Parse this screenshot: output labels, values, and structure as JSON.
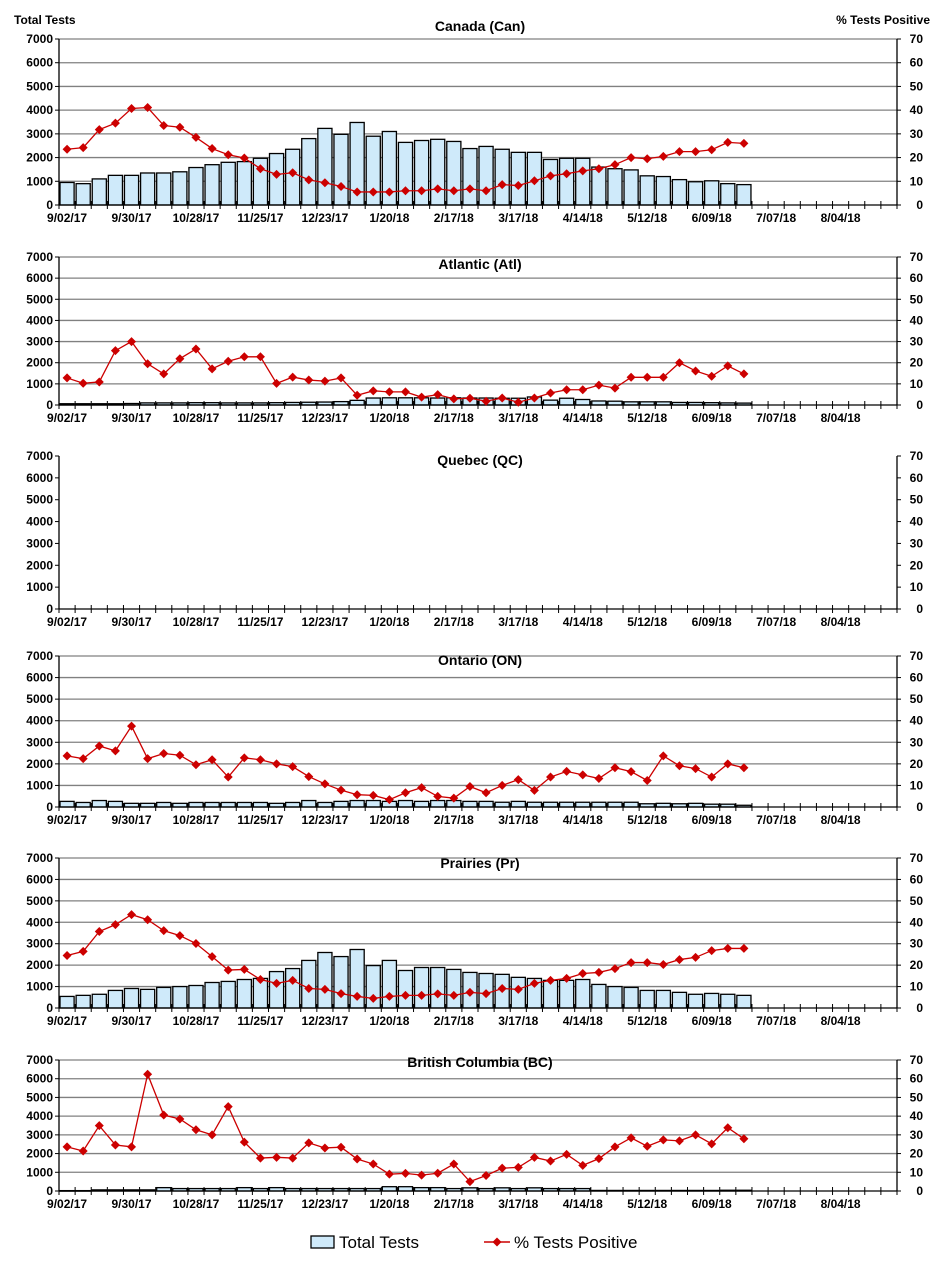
{
  "colors": {
    "bar_fill": "#cfeafa",
    "bar_stroke": "#000000",
    "line": "#cc0000",
    "grid": "#808080"
  },
  "legend": {
    "bars_label": "Total Tests",
    "line_label": "% Tests Positive",
    "placement": "bottom-center"
  },
  "chart_data": [
    {
      "type": "bar+line",
      "title": "Canada (Can)",
      "ylabel": "Total Tests",
      "y2label": "% Tests Positive",
      "ylim": [
        0,
        7000
      ],
      "y2lim": [
        0,
        70
      ],
      "y_ticks": [
        "0",
        "1000",
        "2000",
        "3000",
        "4000",
        "5000",
        "6000",
        "7000"
      ],
      "y2_ticks": [
        "0",
        "10",
        "20",
        "30",
        "40",
        "50",
        "60",
        "70"
      ],
      "x_tick_labels": [
        "9/02/17",
        "9/30/17",
        "10/28/17",
        "11/25/17",
        "12/23/17",
        "1/20/18",
        "2/17/18",
        "3/17/18",
        "4/14/18",
        "5/12/18",
        "6/09/18",
        "7/07/18",
        "8/04/18"
      ],
      "grid": true,
      "series": [
        {
          "name": "Total Tests",
          "axis": "left",
          "type": "bar",
          "values": [
            950,
            900,
            1100,
            1250,
            1250,
            1350,
            1350,
            1400,
            1580,
            1700,
            1800,
            1830,
            1970,
            2170,
            2350,
            2800,
            3230,
            2980,
            3480,
            2900,
            3100,
            2640,
            2720,
            2770,
            2680,
            2380,
            2470,
            2350,
            2220,
            2220,
            1920,
            1970,
            1970,
            1600,
            1530,
            1480,
            1230,
            1200,
            1070,
            980,
            1020,
            900,
            860
          ]
        },
        {
          "name": "% Tests Positive",
          "axis": "right",
          "type": "line",
          "values": [
            23.5,
            24.2,
            31.8,
            34.5,
            40.7,
            41.1,
            33.5,
            32.8,
            28.5,
            23.8,
            21.2,
            19.8,
            15.3,
            12.9,
            13.6,
            10.6,
            9.4,
            7.8,
            5.5,
            5.5,
            5.5,
            6.0,
            6.0,
            6.8,
            6.0,
            6.8,
            6.0,
            8.6,
            8.2,
            10.2,
            12.3,
            13.2,
            14.4,
            15.3,
            17.0,
            20.0,
            19.5,
            20.5,
            22.5,
            22.5,
            23.3,
            26.4,
            26.0
          ]
        }
      ]
    },
    {
      "type": "bar+line",
      "title": "Atlantic (Atl)",
      "ylim": [
        0,
        7000
      ],
      "y2lim": [
        0,
        70
      ],
      "y_ticks": [
        "0",
        "1000",
        "2000",
        "3000",
        "4000",
        "5000",
        "6000",
        "7000"
      ],
      "y2_ticks": [
        "0",
        "10",
        "20",
        "30",
        "40",
        "50",
        "60",
        "70"
      ],
      "x_tick_labels": [
        "9/02/17",
        "9/30/17",
        "10/28/17",
        "11/25/17",
        "12/23/17",
        "1/20/18",
        "2/17/18",
        "3/17/18",
        "4/14/18",
        "5/12/18",
        "6/09/18",
        "7/07/18",
        "8/04/18"
      ],
      "grid": true,
      "series": [
        {
          "name": "Total Tests",
          "axis": "left",
          "type": "bar",
          "values": [
            60,
            60,
            60,
            60,
            70,
            100,
            100,
            100,
            110,
            110,
            100,
            100,
            100,
            110,
            120,
            130,
            140,
            160,
            220,
            330,
            340,
            340,
            340,
            330,
            340,
            330,
            330,
            320,
            320,
            380,
            230,
            320,
            260,
            190,
            180,
            150,
            150,
            150,
            120,
            120,
            110,
            100,
            90
          ]
        },
        {
          "name": "% Tests Positive",
          "axis": "right",
          "type": "line",
          "values": [
            12.8,
            10.3,
            10.9,
            25.7,
            30.0,
            19.5,
            14.7,
            21.9,
            26.5,
            17.1,
            20.7,
            22.8,
            22.8,
            10.2,
            13.2,
            11.8,
            11.3,
            12.8,
            4.6,
            6.7,
            6.2,
            6.2,
            3.7,
            4.9,
            2.9,
            3.2,
            1.8,
            3.3,
            1.3,
            3.3,
            5.7,
            7.2,
            7.2,
            9.4,
            8.0,
            13.1,
            13.1,
            13.1,
            20.0,
            16.1,
            13.6,
            18.5,
            14.7
          ]
        }
      ]
    },
    {
      "type": "bar+line",
      "title": "Quebec (QC)",
      "ylim": [
        0,
        7000
      ],
      "y2lim": [
        0,
        70
      ],
      "y_ticks": [
        "0",
        "1000",
        "2000",
        "3000",
        "4000",
        "5000",
        "6000",
        "7000"
      ],
      "y2_ticks": [
        "0",
        "10",
        "20",
        "30",
        "40",
        "50",
        "60",
        "70"
      ],
      "x_tick_labels": [
        "9/02/17",
        "9/30/17",
        "10/28/17",
        "11/25/17",
        "12/23/17",
        "1/20/18",
        "2/17/18",
        "3/17/18",
        "4/14/18",
        "5/12/18",
        "6/09/18",
        "7/07/18",
        "8/04/18"
      ],
      "grid": false,
      "series": [
        {
          "name": "Total Tests",
          "axis": "left",
          "type": "bar",
          "values": []
        },
        {
          "name": "% Tests Positive",
          "axis": "right",
          "type": "line",
          "values": []
        }
      ]
    },
    {
      "type": "bar+line",
      "title": "Ontario (ON)",
      "ylim": [
        0,
        7000
      ],
      "y2lim": [
        0,
        70
      ],
      "y_ticks": [
        "0",
        "1000",
        "2000",
        "3000",
        "4000",
        "5000",
        "6000",
        "7000"
      ],
      "y2_ticks": [
        "0",
        "10",
        "20",
        "30",
        "40",
        "50",
        "60",
        "70"
      ],
      "x_tick_labels": [
        "9/02/17",
        "9/30/17",
        "10/28/17",
        "11/25/17",
        "12/23/17",
        "1/20/18",
        "2/17/18",
        "3/17/18",
        "4/14/18",
        "5/12/18",
        "6/09/18",
        "7/07/18",
        "8/04/18"
      ],
      "grid": true,
      "series": [
        {
          "name": "Total Tests",
          "axis": "left",
          "type": "bar",
          "values": [
            260,
            210,
            300,
            260,
            170,
            170,
            210,
            170,
            210,
            210,
            210,
            210,
            210,
            170,
            210,
            300,
            210,
            260,
            300,
            300,
            260,
            300,
            260,
            300,
            300,
            260,
            260,
            220,
            260,
            220,
            220,
            220,
            220,
            220,
            220,
            220,
            150,
            170,
            150,
            170,
            130,
            130,
            80
          ]
        },
        {
          "name": "% Tests Positive",
          "axis": "right",
          "type": "line",
          "values": [
            23.7,
            22.4,
            28.3,
            26.0,
            37.5,
            22.4,
            24.8,
            24.0,
            19.6,
            21.9,
            13.9,
            22.8,
            21.9,
            20.0,
            18.7,
            14.1,
            10.7,
            7.8,
            5.7,
            5.4,
            3.4,
            6.6,
            9.0,
            4.9,
            4.1,
            9.5,
            6.6,
            10.0,
            12.7,
            7.7,
            13.9,
            16.5,
            14.9,
            13.2,
            18.2,
            16.4,
            12.3,
            23.7,
            19.1,
            17.8,
            13.9,
            20.0,
            18.2
          ]
        }
      ]
    },
    {
      "type": "bar+line",
      "title": "Prairies (Pr)",
      "ylim": [
        0,
        7000
      ],
      "y2lim": [
        0,
        70
      ],
      "y_ticks": [
        "0",
        "1000",
        "2000",
        "3000",
        "4000",
        "5000",
        "6000",
        "7000"
      ],
      "y2_ticks": [
        "0",
        "10",
        "20",
        "30",
        "40",
        "50",
        "60",
        "70"
      ],
      "x_tick_labels": [
        "9/02/17",
        "9/30/17",
        "10/28/17",
        "11/25/17",
        "12/23/17",
        "1/20/18",
        "2/17/18",
        "3/17/18",
        "4/14/18",
        "5/12/18",
        "6/09/18",
        "7/07/18",
        "8/04/18"
      ],
      "grid": true,
      "series": [
        {
          "name": "Total Tests",
          "axis": "left",
          "type": "bar",
          "values": [
            540,
            590,
            640,
            820,
            910,
            870,
            960,
            1000,
            1050,
            1190,
            1240,
            1330,
            1380,
            1700,
            1840,
            2220,
            2590,
            2400,
            2730,
            1980,
            2220,
            1750,
            1890,
            1890,
            1800,
            1660,
            1610,
            1570,
            1430,
            1380,
            1290,
            1290,
            1330,
            1100,
            1000,
            960,
            820,
            820,
            730,
            640,
            680,
            640,
            590
          ]
        },
        {
          "name": "% Tests Positive",
          "axis": "right",
          "type": "line",
          "values": [
            24.5,
            26.4,
            35.7,
            38.9,
            43.6,
            41.2,
            36.1,
            33.8,
            30.1,
            24.0,
            17.7,
            18.0,
            13.3,
            11.5,
            12.9,
            9.1,
            8.7,
            6.7,
            5.4,
            4.5,
            5.4,
            5.9,
            5.9,
            6.6,
            5.9,
            7.3,
            6.7,
            9.1,
            8.7,
            11.5,
            12.9,
            13.8,
            16.1,
            16.6,
            18.4,
            21.2,
            21.2,
            20.3,
            22.6,
            23.6,
            26.8,
            27.8,
            27.8
          ]
        }
      ]
    },
    {
      "type": "bar+line",
      "title": "British Columbia (BC)",
      "ylim": [
        0,
        7000
      ],
      "y2lim": [
        0,
        70
      ],
      "y_ticks": [
        "0",
        "1000",
        "2000",
        "3000",
        "4000",
        "5000",
        "6000",
        "7000"
      ],
      "y2_ticks": [
        "0",
        "10",
        "20",
        "30",
        "40",
        "50",
        "60",
        "70"
      ],
      "x_tick_labels": [
        "9/02/17",
        "9/30/17",
        "10/28/17",
        "11/25/17",
        "12/23/17",
        "1/20/18",
        "2/17/18",
        "3/17/18",
        "4/14/18",
        "5/12/18",
        "6/09/18",
        "7/07/18",
        "8/04/18"
      ],
      "grid": true,
      "series": [
        {
          "name": "Total Tests",
          "axis": "left",
          "type": "bar",
          "values": [
            20,
            20,
            60,
            60,
            60,
            60,
            180,
            130,
            130,
            130,
            130,
            180,
            130,
            180,
            130,
            130,
            130,
            130,
            130,
            130,
            230,
            230,
            180,
            180,
            130,
            170,
            130,
            170,
            130,
            170,
            130,
            130,
            130,
            30,
            30,
            30,
            30,
            30,
            30,
            30,
            30,
            40,
            40
          ]
        },
        {
          "name": "% Tests Positive",
          "axis": "right",
          "type": "line",
          "values": [
            23.6,
            21.4,
            34.9,
            24.6,
            23.6,
            62.4,
            40.6,
            38.5,
            32.7,
            30.0,
            45.1,
            26.1,
            17.6,
            18.0,
            17.6,
            25.7,
            23.0,
            23.4,
            17.1,
            14.4,
            9.0,
            9.4,
            8.5,
            9.5,
            14.4,
            5.0,
            8.3,
            12.2,
            12.6,
            18.0,
            16.0,
            19.6,
            13.7,
            17.3,
            23.6,
            28.4,
            23.9,
            27.3,
            26.8,
            30.0,
            25.2,
            33.8,
            27.9
          ]
        }
      ]
    }
  ]
}
